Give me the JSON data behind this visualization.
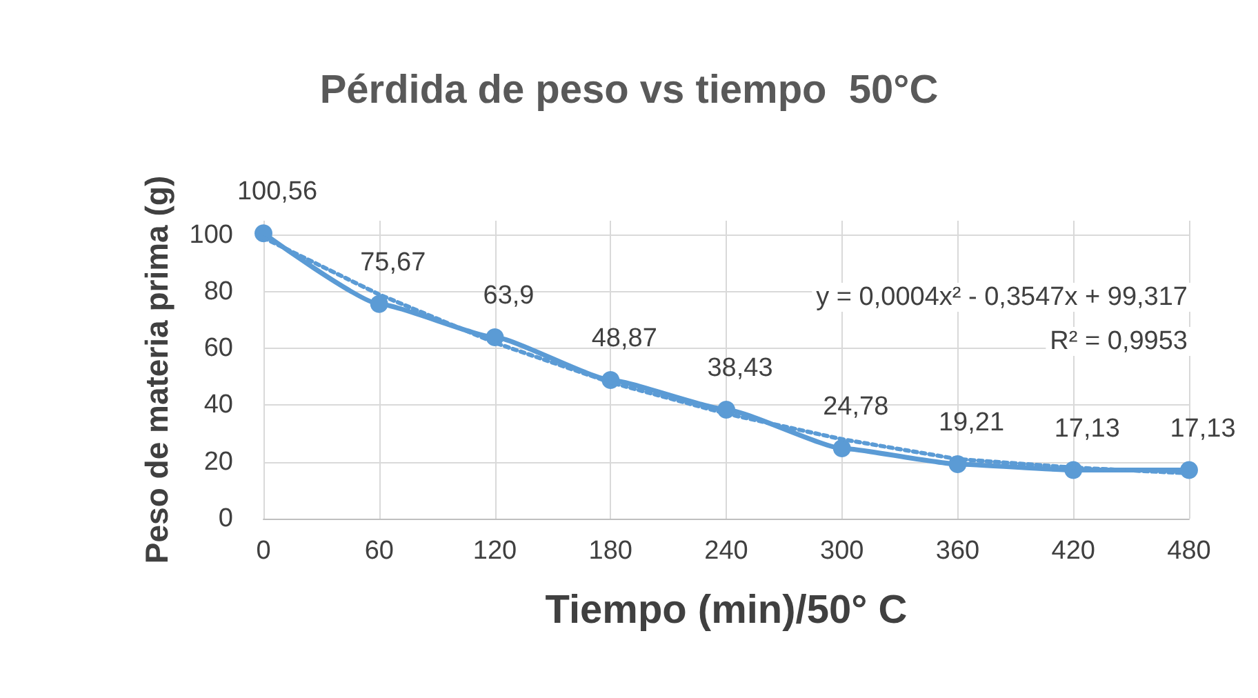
{
  "chart_data": {
    "type": "line",
    "title": "Pérdida de peso vs tiempo  50°C",
    "xlabel": "Tiempo (min)/50° C",
    "ylabel": "Peso de materia prima (g)",
    "x": [
      0,
      60,
      120,
      180,
      240,
      300,
      360,
      420,
      480
    ],
    "series": [
      {
        "color": "#5b9bd5",
        "values": [
          100.56,
          75.67,
          63.9,
          48.87,
          38.43,
          24.78,
          19.21,
          17.13,
          17.13
        ],
        "value_labels": [
          "100,56",
          "75,67",
          "63,9",
          "48,87",
          "38,43",
          "24,78",
          "19,21",
          "17,13",
          "17,13"
        ],
        "marker": "circle",
        "line_style": "solid"
      },
      {
        "color": "#5b9bd5",
        "values": [
          99,
          79,
          62,
          48,
          37,
          28,
          21,
          18,
          16
        ],
        "marker": "none",
        "line_style": "dotted"
      }
    ],
    "annotations": [
      "y = 0,0004x² - 0,3547x + 99,317",
      "R² = 0,9953"
    ],
    "xlim": [
      0,
      480
    ],
    "xticks": [
      0,
      60,
      120,
      180,
      240,
      300,
      360,
      420,
      480
    ],
    "ylim": [
      0,
      105
    ],
    "yticks": [
      0,
      20,
      40,
      60,
      80,
      100
    ],
    "grid": true
  }
}
